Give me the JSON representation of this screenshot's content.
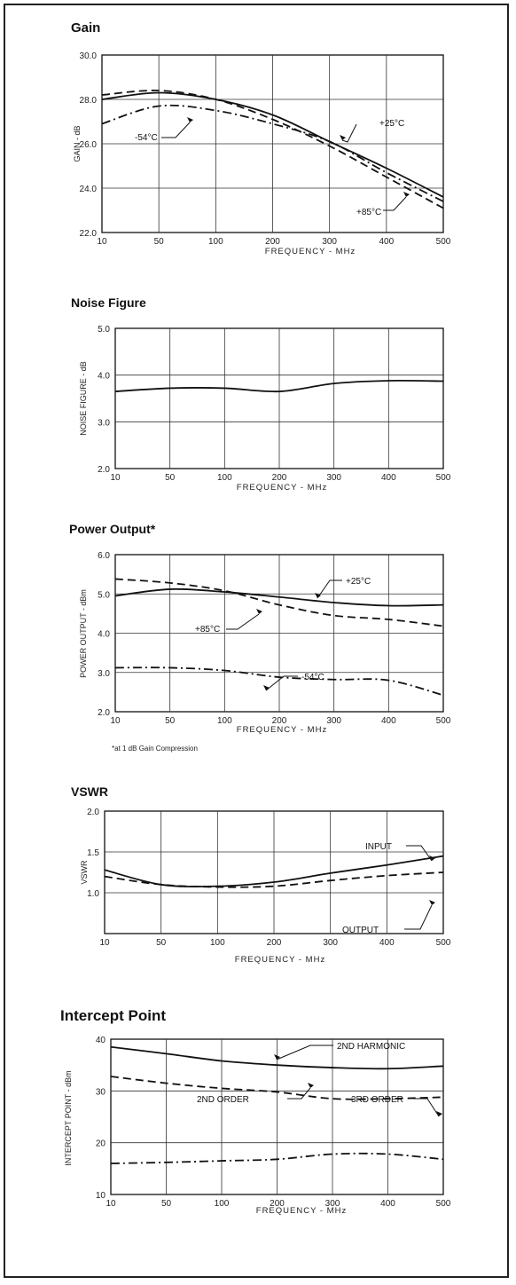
{
  "chart_data": [
    {
      "type": "line",
      "title": "Gain",
      "xlabel": "FREQUENCY - MHz",
      "ylabel": "GAIN - dB",
      "x_ticks": [
        "10",
        "50",
        "100",
        "200",
        "300",
        "400",
        "500"
      ],
      "y_ticks": [
        "22.0",
        "24.0",
        "26.0",
        "28.0",
        "30.0"
      ],
      "ylim": [
        22,
        30
      ],
      "grid": true,
      "series": [
        {
          "name": "+25°C",
          "style": "solid",
          "x": [
            "10",
            "50",
            "100",
            "200",
            "300",
            "400",
            "500"
          ],
          "y": [
            28.0,
            28.3,
            28.0,
            27.3,
            26.1,
            24.9,
            23.6
          ]
        },
        {
          "name": "-54°C",
          "style": "dashdot",
          "x": [
            "10",
            "50",
            "100",
            "200",
            "300",
            "400",
            "500"
          ],
          "y": [
            26.9,
            27.7,
            27.5,
            26.9,
            26.1,
            24.7,
            23.4
          ]
        },
        {
          "name": "+85°C",
          "style": "dashed",
          "x": [
            "10",
            "50",
            "100",
            "200",
            "300",
            "400",
            "500"
          ],
          "y": [
            28.2,
            28.4,
            28.0,
            27.1,
            25.9,
            24.5,
            23.1
          ]
        }
      ],
      "annotations": [
        "+25°C",
        "-54°C",
        "+85°C"
      ]
    },
    {
      "type": "line",
      "title": "Noise Figure",
      "xlabel": "FREQUENCY - MHz",
      "ylabel": "NOISE FIGURE - dB",
      "x_ticks": [
        "10",
        "50",
        "100",
        "200",
        "300",
        "400",
        "500"
      ],
      "y_ticks": [
        "2.0",
        "3.0",
        "4.0",
        "5.0"
      ],
      "ylim": [
        2,
        5
      ],
      "grid": true,
      "series": [
        {
          "style": "solid",
          "x": [
            "10",
            "50",
            "100",
            "200",
            "300",
            "400",
            "500"
          ],
          "y": [
            3.65,
            3.72,
            3.72,
            3.65,
            3.82,
            3.88,
            3.87
          ]
        }
      ],
      "annotations": []
    },
    {
      "type": "line",
      "title": "Power Output*",
      "xlabel": "FREQUENCY - MHz",
      "ylabel": "POWER OUTPUT - dBm",
      "x_ticks": [
        "10",
        "50",
        "100",
        "200",
        "300",
        "400",
        "500"
      ],
      "y_ticks": [
        "2.0",
        "3.0",
        "4.0",
        "5.0",
        "6.0"
      ],
      "ylim": [
        2,
        6
      ],
      "grid": true,
      "footnote": "*at 1 dB Gain Compression",
      "series": [
        {
          "name": "+25°C",
          "style": "solid",
          "x": [
            "10",
            "50",
            "100",
            "200",
            "300",
            "400",
            "500"
          ],
          "y": [
            4.95,
            5.12,
            5.05,
            4.92,
            4.78,
            4.7,
            4.72
          ]
        },
        {
          "name": "+85°C",
          "style": "dashed",
          "x": [
            "10",
            "50",
            "100",
            "200",
            "300",
            "400",
            "500"
          ],
          "y": [
            5.38,
            5.28,
            5.08,
            4.72,
            4.45,
            4.35,
            4.18
          ]
        },
        {
          "name": "-54°C",
          "style": "dashdot",
          "x": [
            "10",
            "50",
            "100",
            "200",
            "300",
            "400",
            "500"
          ],
          "y": [
            3.12,
            3.12,
            3.05,
            2.88,
            2.82,
            2.8,
            2.42
          ]
        }
      ],
      "annotations": [
        "+25°C",
        "+85°C",
        "-54°C"
      ]
    },
    {
      "type": "line",
      "title": "VSWR",
      "xlabel": "FREQUENCY - MHz",
      "ylabel": "VSWR",
      "x_ticks": [
        "10",
        "50",
        "100",
        "200",
        "300",
        "400",
        "500"
      ],
      "y_ticks": [
        "1.0",
        "1.5",
        "2.0"
      ],
      "ylim": [
        0.5,
        2.0
      ],
      "grid": true,
      "series": [
        {
          "name": "INPUT",
          "style": "solid",
          "x": [
            "10",
            "50",
            "100",
            "200",
            "300",
            "400",
            "500"
          ],
          "y": [
            1.28,
            1.1,
            1.08,
            1.13,
            1.24,
            1.34,
            1.45
          ]
        },
        {
          "name": "OUTPUT",
          "style": "dashed",
          "x": [
            "10",
            "50",
            "100",
            "200",
            "300",
            "400",
            "500"
          ],
          "y": [
            1.2,
            1.1,
            1.07,
            1.08,
            1.15,
            1.21,
            1.25
          ]
        }
      ],
      "annotations": [
        "INPUT",
        "OUTPUT"
      ]
    },
    {
      "type": "line",
      "title": "Intercept Point",
      "xlabel": "FREQUENCY - MHz",
      "ylabel": "INTERCEPT POINT - dBm",
      "x_ticks": [
        "10",
        "50",
        "100",
        "200",
        "300",
        "400",
        "500"
      ],
      "y_ticks": [
        "10",
        "20",
        "30",
        "40"
      ],
      "ylim": [
        10,
        40
      ],
      "grid": true,
      "series": [
        {
          "name": "2ND HARMONIC",
          "style": "solid",
          "x": [
            "10",
            "50",
            "100",
            "200",
            "300",
            "400",
            "500"
          ],
          "y": [
            38.5,
            37.2,
            35.8,
            35.0,
            34.5,
            34.3,
            34.8
          ]
        },
        {
          "name": "2ND ORDER",
          "style": "dashed",
          "x": [
            "10",
            "50",
            "100",
            "200",
            "300",
            "400",
            "500"
          ],
          "y": [
            32.8,
            31.5,
            30.5,
            29.8,
            28.5,
            28.5,
            28.8
          ]
        },
        {
          "name": "3RD ORDER",
          "style": "dashdot",
          "x": [
            "10",
            "50",
            "100",
            "200",
            "300",
            "400",
            "500"
          ],
          "y": [
            16.0,
            16.2,
            16.5,
            16.8,
            17.8,
            17.8,
            16.8
          ]
        }
      ],
      "annotations": [
        "2ND HARMONIC",
        "2ND ORDER",
        "3RD ORDER"
      ]
    }
  ]
}
